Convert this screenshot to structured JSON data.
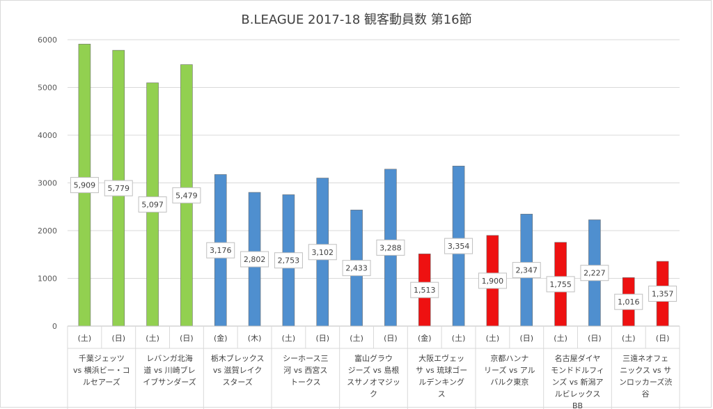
{
  "chart_data": {
    "type": "bar",
    "title": "B.LEAGUE 2017-18 観客動員数 第16節",
    "ylim": [
      0,
      6000
    ],
    "yticks": [
      0,
      1000,
      2000,
      3000,
      4000,
      5000,
      6000
    ],
    "grid": true,
    "legend": "none",
    "colors": {
      "green": "#92d050",
      "blue": "#4f8fcf",
      "red": "#ee1111"
    },
    "days": [
      "(土)",
      "(日)",
      "(土)",
      "(日)",
      "(金)",
      "(木)",
      "(土)",
      "(日)",
      "(土)",
      "(日)",
      "(金)",
      "(土)",
      "(土)",
      "(日)",
      "(土)",
      "(日)",
      "(土)",
      "(日)"
    ],
    "values": [
      5909,
      5779,
      5097,
      5479,
      3176,
      2802,
      2753,
      3102,
      2433,
      3288,
      1513,
      3354,
      1900,
      2347,
      1755,
      2227,
      1016,
      1357
    ],
    "value_labels": [
      "5,909",
      "5,779",
      "5,097",
      "5,479",
      "3,176",
      "2,802",
      "2,753",
      "3,102",
      "2,433",
      "3,288",
      "1,513",
      "3,354",
      "1,900",
      "2,347",
      "1,755",
      "2,227",
      "1,016",
      "1,357"
    ],
    "bar_colors": [
      "green",
      "green",
      "green",
      "green",
      "blue",
      "blue",
      "blue",
      "blue",
      "blue",
      "blue",
      "red",
      "blue",
      "red",
      "blue",
      "red",
      "blue",
      "red",
      "red"
    ],
    "matchups": [
      [
        "千葉ジェッツ",
        "vs 横浜ビー・コ",
        "ルセアーズ"
      ],
      [
        "レバンガ北海",
        "道 vs 川崎ブレ",
        "イブサンダーズ"
      ],
      [
        "栃木ブレックス",
        "vs 滋賀レイク",
        "スターズ"
      ],
      [
        "シーホース三",
        "河 vs 西宮ス",
        "トークス"
      ],
      [
        "富山グラウ",
        "ジーズ vs 島根",
        "スサノオマジッ",
        "ク"
      ],
      [
        "大阪エヴェッ",
        "サ vs 琉球ゴー",
        "ルデンキング",
        "ス"
      ],
      [
        "京都ハンナ",
        "リーズ vs アル",
        "バルク東京"
      ],
      [
        "名古屋ダイヤ",
        "モンドドルフィ",
        "ンズ vs 新潟ア",
        "ルビレックス",
        "BB"
      ],
      [
        "三遠ネオフェ",
        "ニックス vs サ",
        "ンロッカーズ渋",
        "谷"
      ]
    ]
  }
}
